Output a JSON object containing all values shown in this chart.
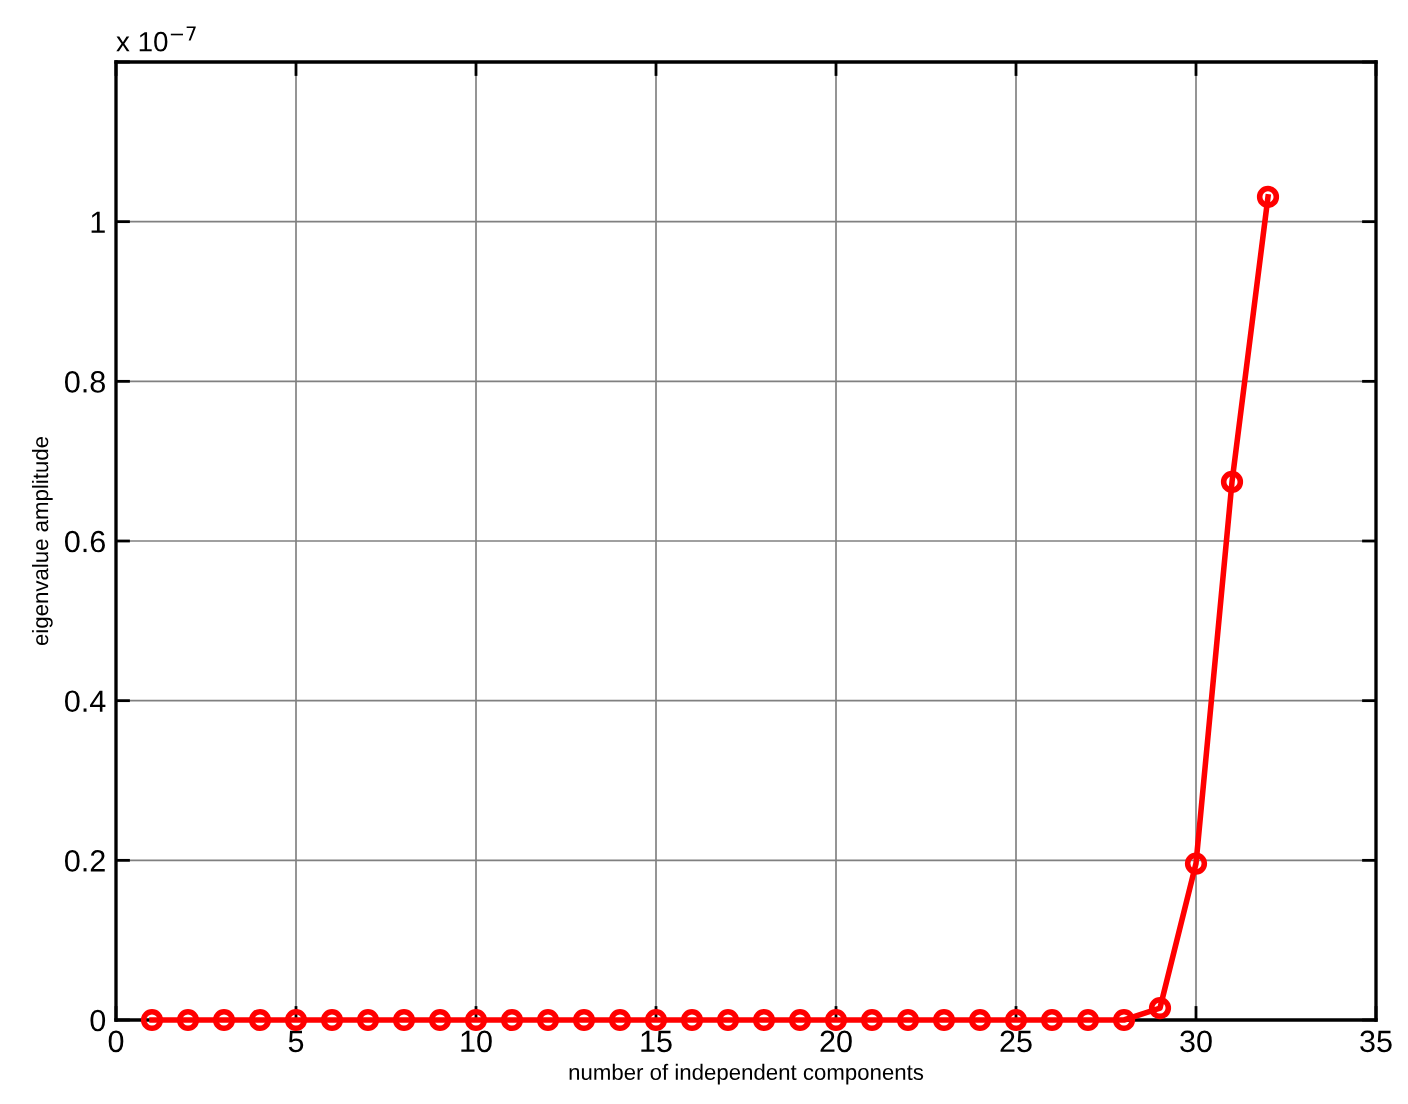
{
  "chart_data": {
    "type": "line",
    "xlabel": "number of independent components",
    "ylabel": "eigenvalue amplitude",
    "annotations": [
      "x 10$^{−7}$"
    ],
    "x": [
      1,
      2,
      3,
      4,
      5,
      6,
      7,
      8,
      9,
      10,
      11,
      12,
      13,
      14,
      15,
      16,
      17,
      18,
      19,
      20,
      21,
      22,
      23,
      24,
      25,
      26,
      27,
      28,
      29,
      30,
      31,
      32
    ],
    "series": [
      {
        "color": "#ff0000",
        "values": [
          0,
          0,
          0,
          0,
          0,
          0,
          0,
          0,
          0,
          0,
          0,
          0,
          0,
          0,
          0,
          0,
          0,
          0,
          0,
          0,
          0,
          0,
          0,
          0,
          0,
          0,
          0,
          0,
          0.015,
          0.196,
          0.674,
          1.031
        ]
      }
    ],
    "xlim": [
      0,
      35
    ],
    "xticks": [
      0,
      5,
      10,
      15,
      20,
      25,
      30,
      35
    ],
    "ylim": [
      0,
      1.2
    ],
    "yticks": [
      0,
      0.2,
      0.4,
      0.6,
      0.8,
      1,
      {
        "value": 1.2,
        "label": null
      }
    ],
    "grid": true,
    "marker": "circle",
    "line_style": "solid"
  }
}
